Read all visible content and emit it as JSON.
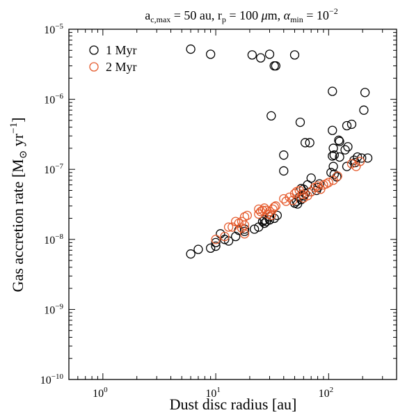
{
  "chart_data": {
    "type": "scatter",
    "title": "a_c,max = 50 au, r_p = 100 μm, α_min = 10^−2",
    "title_parts": {
      "a": "a",
      "a_sub": "c,max",
      "a_rest": " = 50 au, ",
      "r": "r",
      "r_sub": "p",
      "r_rest": " = 100 ",
      "mu": "μ",
      "mu_rest": "m, ",
      "alpha": "α",
      "alpha_sub": "min",
      "alpha_rest": " = 10",
      "alpha_exp": "−2"
    },
    "xlabel": "Dust disc radius [au]",
    "ylabel": "Gas accretion rate [M⊙ yr−1]",
    "ylabel_parts": {
      "main": "Gas accretion rate [M",
      "sun": "⊙",
      "unit": " yr",
      "exp": "−1",
      "close": "]"
    },
    "x_scale": "log",
    "y_scale": "log",
    "xlim": [
      0.5,
      400
    ],
    "ylim": [
      1e-10,
      1e-05
    ],
    "x_ticks": [
      {
        "base": "10",
        "exp": "0",
        "value": 1
      },
      {
        "base": "10",
        "exp": "1",
        "value": 10
      },
      {
        "base": "10",
        "exp": "2",
        "value": 100
      }
    ],
    "y_ticks": [
      {
        "base": "10",
        "exp": "−10",
        "value": 1e-10
      },
      {
        "base": "10",
        "exp": "−9",
        "value": 1e-09
      },
      {
        "base": "10",
        "exp": "−8",
        "value": 1e-08
      },
      {
        "base": "10",
        "exp": "−7",
        "value": 1e-07
      },
      {
        "base": "10",
        "exp": "−6",
        "value": 1e-06
      },
      {
        "base": "10",
        "exp": "−5",
        "value": 1e-05
      }
    ],
    "grid": false,
    "legend_position": "top-left",
    "series": [
      {
        "name": "1 Myr",
        "color": "#000000",
        "marker": "open-circle",
        "points": [
          [
            6,
            5.2e-06
          ],
          [
            9,
            4.4e-06
          ],
          [
            21,
            4.3e-06
          ],
          [
            25,
            3.9e-06
          ],
          [
            30,
            4.4e-06
          ],
          [
            33,
            3e-06
          ],
          [
            34,
            3e-06
          ],
          [
            50,
            4.3e-06
          ],
          [
            31,
            5.8e-07
          ],
          [
            56,
            4.7e-07
          ],
          [
            108,
            1.3e-06
          ],
          [
            210,
            1.25e-06
          ],
          [
            205,
            7e-07
          ],
          [
            145,
            4.2e-07
          ],
          [
            160,
            4.4e-07
          ],
          [
            108,
            3.6e-07
          ],
          [
            62,
            2.4e-07
          ],
          [
            68,
            2.4e-07
          ],
          [
            123,
            2.6e-07
          ],
          [
            125,
            2.5e-07
          ],
          [
            148,
            2.1e-07
          ],
          [
            110,
            2e-07
          ],
          [
            140,
            1.9e-07
          ],
          [
            40,
            1.6e-07
          ],
          [
            108,
            1.55e-07
          ],
          [
            125,
            1.5e-07
          ],
          [
            180,
            1.5e-07
          ],
          [
            112,
            1.6e-07
          ],
          [
            168,
            1.35e-07
          ],
          [
            222,
            1.45e-07
          ],
          [
            196,
            1.45e-07
          ],
          [
            172,
            1.25e-07
          ],
          [
            110,
            1.1e-07
          ],
          [
            145,
            1.1e-07
          ],
          [
            40,
            9.5e-08
          ],
          [
            105,
            9e-08
          ],
          [
            112,
            8.5e-08
          ],
          [
            118,
            7.8e-08
          ],
          [
            70,
            7.5e-08
          ],
          [
            83,
            6.2e-08
          ],
          [
            65,
            6e-08
          ],
          [
            80,
            5.5e-08
          ],
          [
            60,
            5.2e-08
          ],
          [
            57,
            5.3e-08
          ],
          [
            78,
            5e-08
          ],
          [
            70,
            4.8e-08
          ],
          [
            62,
            4.5e-08
          ],
          [
            60,
            4.2e-08
          ],
          [
            55,
            4e-08
          ],
          [
            57,
            3.7e-08
          ],
          [
            52,
            3.5e-08
          ],
          [
            50,
            3.3e-08
          ],
          [
            53,
            3.2e-08
          ],
          [
            35,
            2.2e-08
          ],
          [
            33,
            2e-08
          ],
          [
            30,
            1.9e-08
          ],
          [
            28,
            1.8e-08
          ],
          [
            27,
            1.9e-08
          ],
          [
            26,
            1.8e-08
          ],
          [
            24,
            1.5e-08
          ],
          [
            22,
            1.4e-08
          ],
          [
            30,
            2.1e-08
          ],
          [
            27,
            1.7e-08
          ],
          [
            18,
            1.4e-08
          ],
          [
            18,
            1.3e-08
          ],
          [
            16,
            1.35e-08
          ],
          [
            15,
            1.1e-08
          ],
          [
            13,
            9.5e-09
          ],
          [
            12,
            1e-08
          ],
          [
            11,
            1.2e-08
          ],
          [
            10,
            9e-09
          ],
          [
            10,
            8e-09
          ],
          [
            9,
            7.5e-09
          ],
          [
            7,
            7.2e-09
          ],
          [
            6,
            6.2e-09
          ]
        ]
      },
      {
        "name": "2 Myr",
        "color": "#e55a2c",
        "marker": "open-circle",
        "points": [
          [
            10,
            1e-08
          ],
          [
            12,
            1.1e-08
          ],
          [
            13,
            1.5e-08
          ],
          [
            14,
            1.5e-08
          ],
          [
            15,
            1.8e-08
          ],
          [
            16,
            1.7e-08
          ],
          [
            17,
            1.8e-08
          ],
          [
            18,
            2.1e-08
          ],
          [
            19,
            2.2e-08
          ],
          [
            18,
            1.6e-08
          ],
          [
            18,
            1.2e-08
          ],
          [
            17,
            1.45e-08
          ],
          [
            24,
            2.3e-08
          ],
          [
            24,
            2.7e-08
          ],
          [
            25,
            2.5e-08
          ],
          [
            26,
            2.6e-08
          ],
          [
            27,
            2.8e-08
          ],
          [
            28,
            2.6e-08
          ],
          [
            30,
            2.5e-08
          ],
          [
            32,
            2.7e-08
          ],
          [
            33,
            2.9e-08
          ],
          [
            34,
            3e-08
          ],
          [
            29,
            2.3e-08
          ],
          [
            31,
            2.2e-08
          ],
          [
            40,
            3.8e-08
          ],
          [
            42,
            3.5e-08
          ],
          [
            45,
            4e-08
          ],
          [
            48,
            3.6e-08
          ],
          [
            50,
            4.5e-08
          ],
          [
            52,
            4.8e-08
          ],
          [
            55,
            5e-08
          ],
          [
            58,
            4.4e-08
          ],
          [
            60,
            3.9e-08
          ],
          [
            65,
            4.2e-08
          ],
          [
            70,
            4.8e-08
          ],
          [
            75,
            5.5e-08
          ],
          [
            80,
            5.8e-08
          ],
          [
            85,
            5.2e-08
          ],
          [
            90,
            6e-08
          ],
          [
            95,
            6.2e-08
          ],
          [
            100,
            6.5e-08
          ],
          [
            110,
            7e-08
          ],
          [
            120,
            8e-08
          ],
          [
            160,
            1.2e-07
          ],
          [
            175,
            1.1e-07
          ],
          [
            190,
            1.3e-07
          ]
        ]
      }
    ]
  }
}
